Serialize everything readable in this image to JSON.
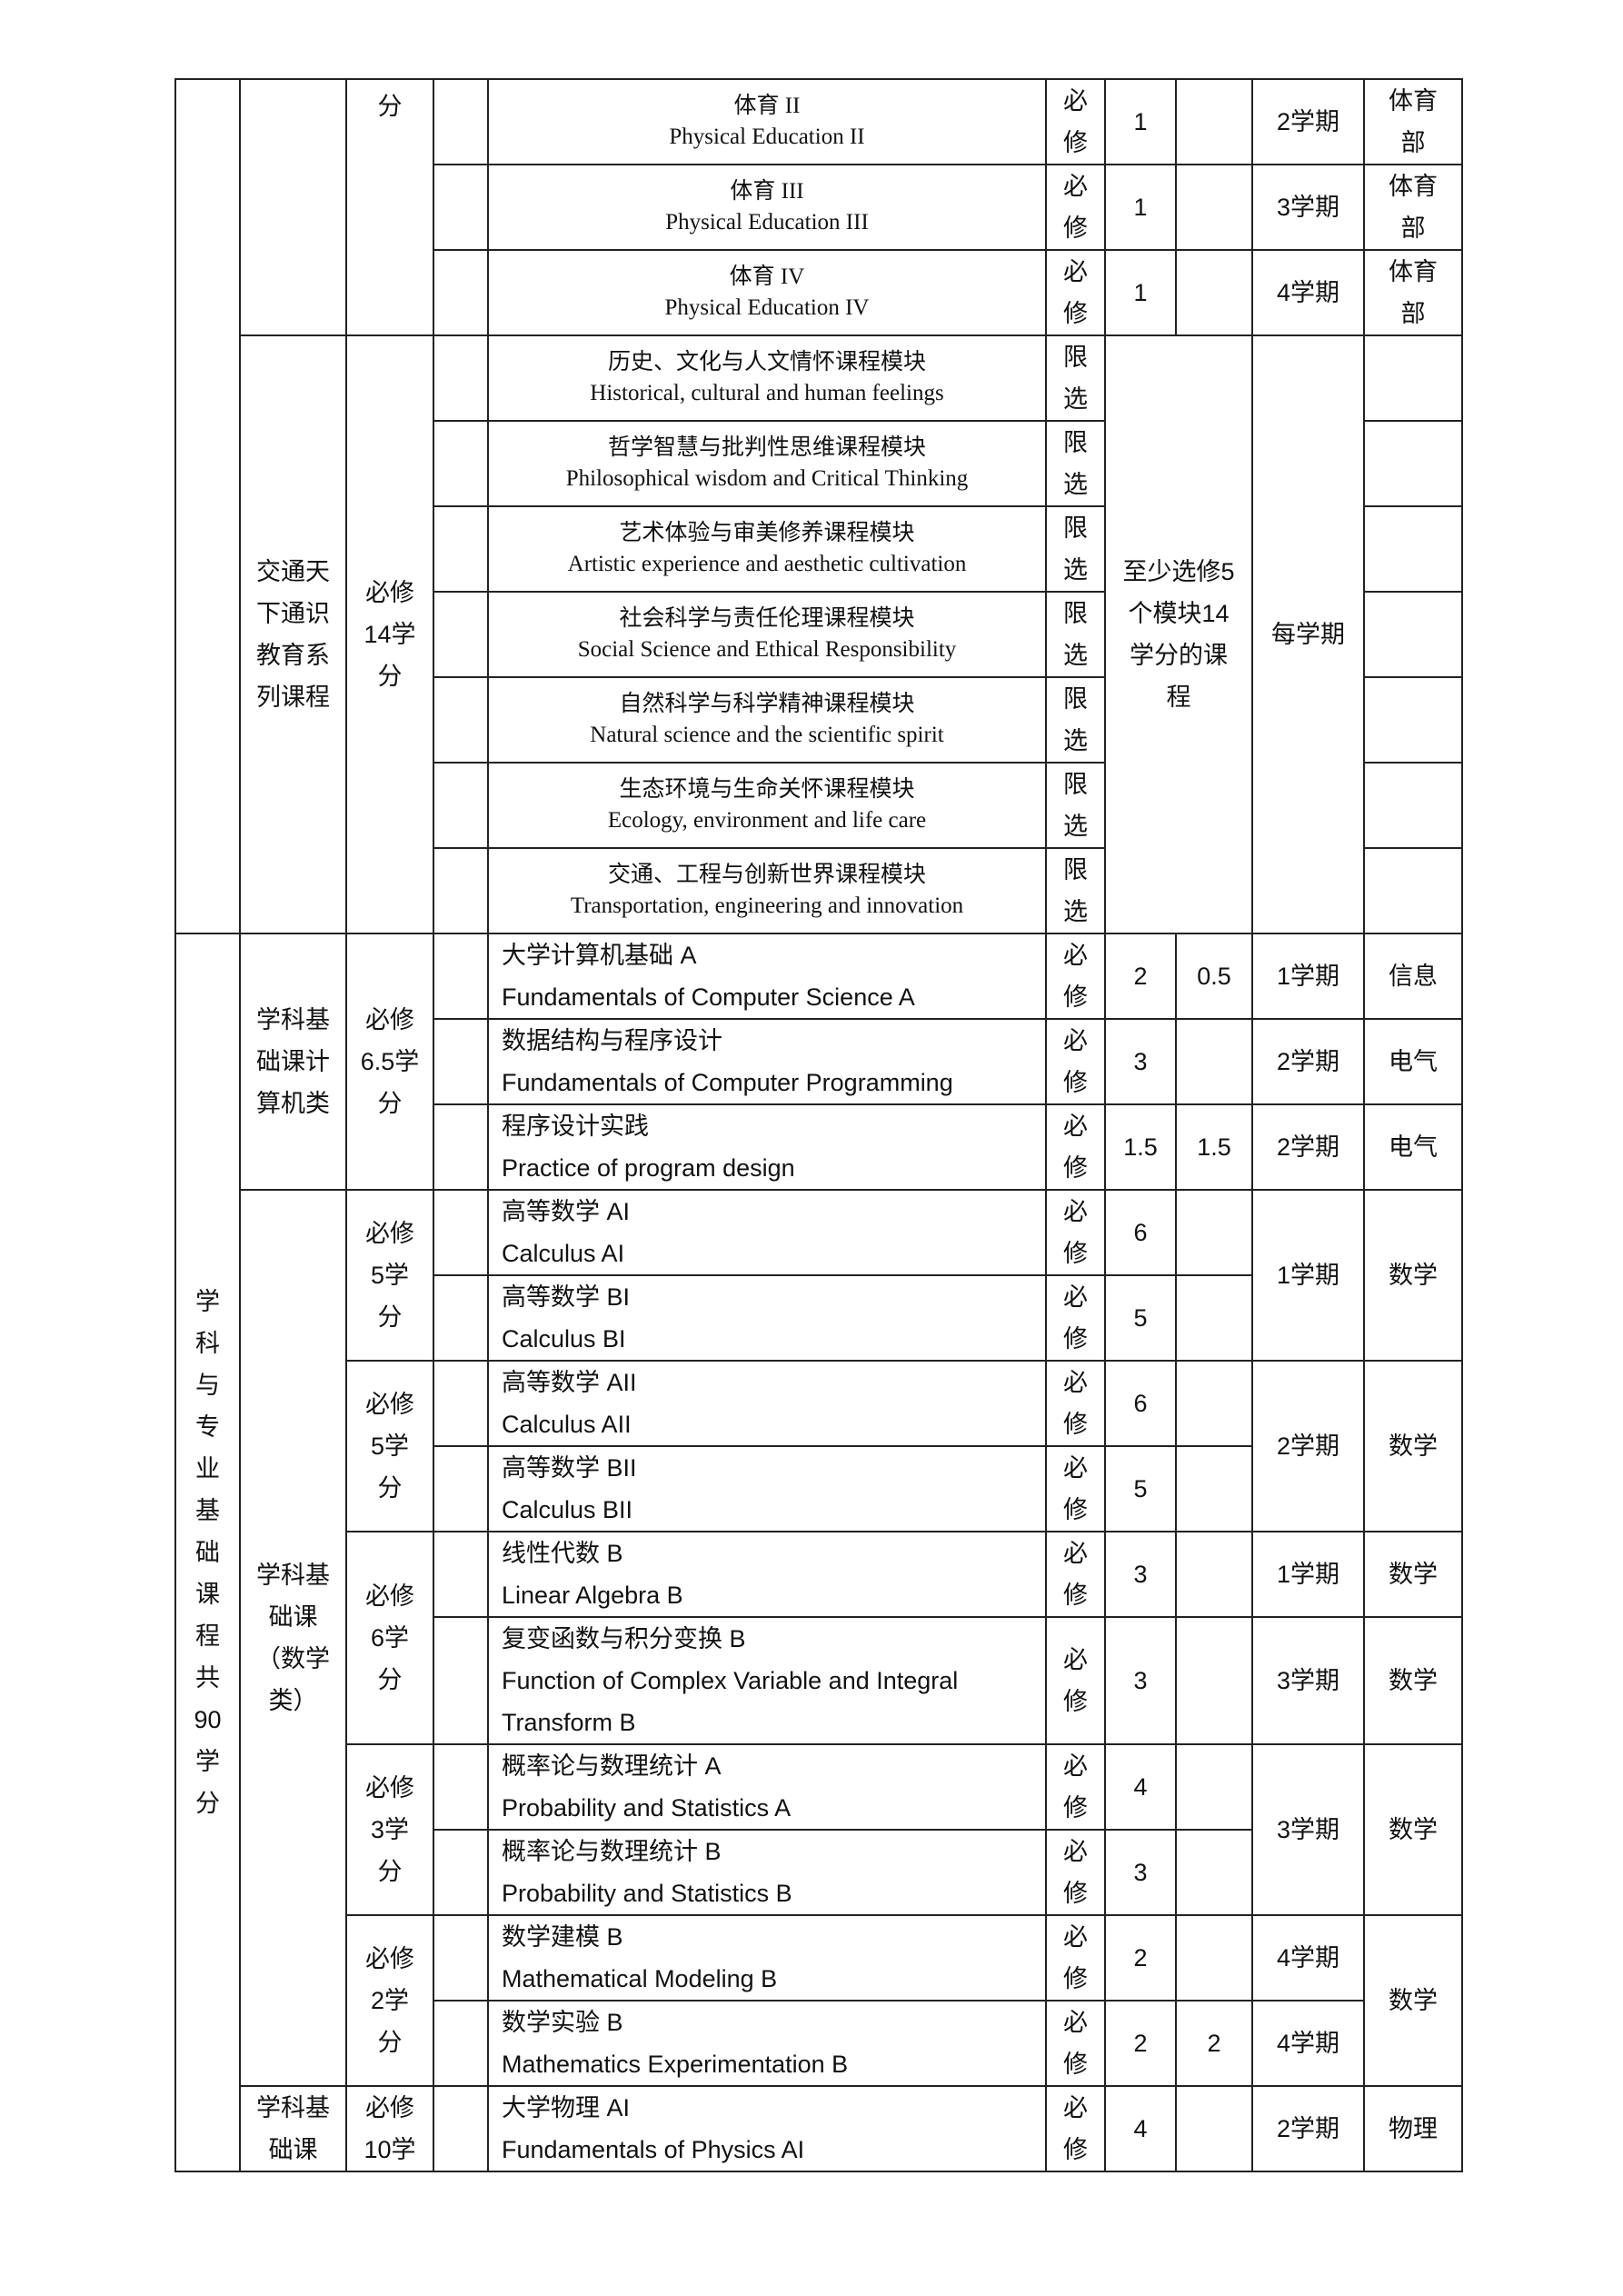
{
  "categories": {
    "general": "",
    "foundation": "学科与专业基础课程 共90学分"
  },
  "groups": {
    "pe": "",
    "tongshi": "交通天下通识教育系列课程",
    "computer": "学科基础课计算机类",
    "math": "学科基础课（数学类）",
    "physics": "学科基础课"
  },
  "requirements": {
    "pe": "分",
    "tongshi": "必修14学分",
    "computer": "必修6.5学分",
    "calc1": "必修5学分",
    "calc2": "必修5学分",
    "la": "必修6学分",
    "prob": "必修3学分",
    "model": "必修2学分",
    "physics": "必修10学"
  },
  "merged": {
    "tongshi_credits": "至少选修5个模块14学分的课程",
    "tongshi_semester": "每学期",
    "calc1_semester": "1学期",
    "calc2_semester": "2学期",
    "prob_semester": "3学期",
    "calc1_dept": "数学",
    "calc2_dept": "数学",
    "prob_dept": "数学",
    "model_dept": "数学"
  },
  "rows": [
    {
      "cn": "体育 II",
      "en": "Physical Education II",
      "type": "必修",
      "credits": "1",
      "practice": "",
      "semester": "2学期",
      "dept": "体育部"
    },
    {
      "cn": "体育 III",
      "en": "Physical Education III",
      "type": "必修",
      "credits": "1",
      "practice": "",
      "semester": "3学期",
      "dept": "体育部"
    },
    {
      "cn": "体育 IV",
      "en": "Physical Education IV",
      "type": "必修",
      "credits": "1",
      "practice": "",
      "semester": "4学期",
      "dept": "体育部"
    },
    {
      "cn": "历史、文化与人文情怀课程模块",
      "en": "Historical, cultural and human feelings",
      "type": "限选"
    },
    {
      "cn": "哲学智慧与批判性思维课程模块",
      "en": "Philosophical wisdom and Critical Thinking",
      "type": "限选"
    },
    {
      "cn": "艺术体验与审美修养课程模块",
      "en": "Artistic experience and aesthetic cultivation",
      "type": "限选"
    },
    {
      "cn": "社会科学与责任伦理课程模块",
      "en": "Social Science and Ethical Responsibility",
      "type": "限选"
    },
    {
      "cn": "自然科学与科学精神课程模块",
      "en": "Natural science and the scientific spirit",
      "type": "限选"
    },
    {
      "cn": "生态环境与生命关怀课程模块",
      "en": "Ecology, environment and life care",
      "type": "限选"
    },
    {
      "cn": "交通、工程与创新世界课程模块",
      "en": "Transportation, engineering and innovation",
      "type": "限选"
    },
    {
      "cn": "大学计算机基础 A",
      "en": "Fundamentals of Computer Science A",
      "type": "必修",
      "credits": "2",
      "practice": "0.5",
      "semester": "1学期",
      "dept": "信息"
    },
    {
      "cn": "数据结构与程序设计",
      "en": "Fundamentals of Computer Programming",
      "type": "必修",
      "credits": "3",
      "practice": "",
      "semester": "2学期",
      "dept": "电气"
    },
    {
      "cn": "程序设计实践",
      "en": "Practice of program design",
      "type": "必修",
      "credits": "1.5",
      "practice": "1.5",
      "semester": "2学期",
      "dept": "电气"
    },
    {
      "cn": "高等数学 AI",
      "en": "Calculus AI",
      "type": "必修",
      "credits": "6",
      "practice": ""
    },
    {
      "cn": "高等数学 BI",
      "en": "Calculus BI",
      "type": "必修",
      "credits": "5",
      "practice": ""
    },
    {
      "cn": "高等数学 AII",
      "en": "Calculus AII",
      "type": "必修",
      "credits": "6",
      "practice": ""
    },
    {
      "cn": "高等数学 BII",
      "en": "Calculus BII",
      "type": "必修",
      "credits": "5",
      "practice": ""
    },
    {
      "cn": "线性代数 B",
      "en": "Linear Algebra B",
      "type": "必修",
      "credits": "3",
      "practice": "",
      "semester": "1学期",
      "dept": "数学"
    },
    {
      "cn": "复变函数与积分变换 B",
      "en": "Function of Complex Variable and Integral Transform B",
      "type": "必修",
      "credits": "3",
      "practice": "",
      "semester": "3学期",
      "dept": "数学"
    },
    {
      "cn": "概率论与数理统计 A",
      "en": "Probability and Statistics A",
      "type": "必修",
      "credits": "4",
      "practice": ""
    },
    {
      "cn": "概率论与数理统计 B",
      "en": "Probability and Statistics B",
      "type": "必修",
      "credits": "3",
      "practice": ""
    },
    {
      "cn": "数学建模 B",
      "en": "Mathematical Modeling B",
      "type": "必修",
      "credits": "2",
      "practice": "",
      "semester": "4学期"
    },
    {
      "cn": "数学实验 B",
      "en": "Mathematics Experimentation B",
      "type": "必修",
      "credits": "2",
      "practice": "2",
      "semester": "4学期"
    },
    {
      "cn": "大学物理 AI",
      "en": "Fundamentals of Physics AI",
      "type": "必修",
      "credits": "4",
      "practice": "",
      "semester": "2学期",
      "dept": "物理"
    }
  ]
}
